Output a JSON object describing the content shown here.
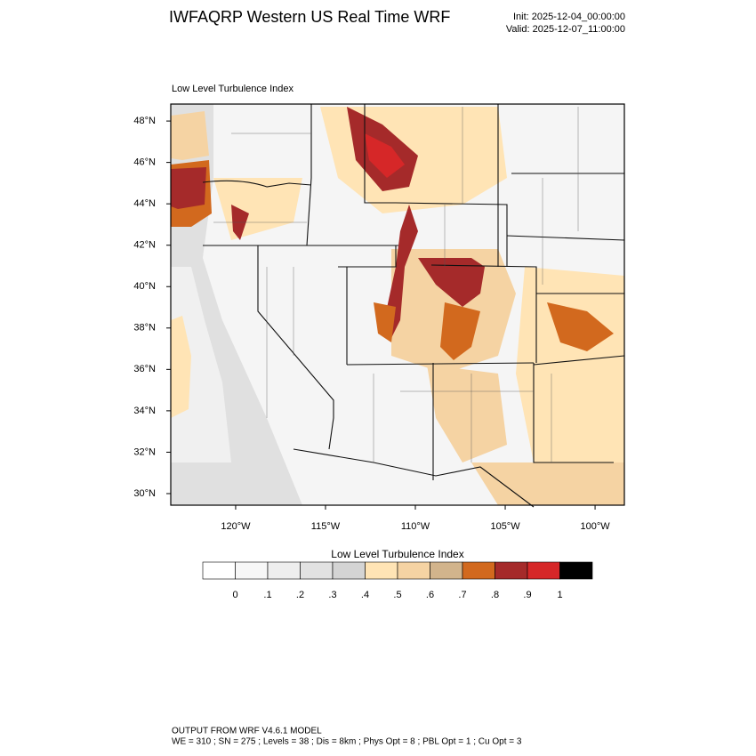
{
  "header": {
    "title": "IWFAQRP Western US Real Time WRF",
    "init": "Init: 2025-12-04_00:00:00",
    "valid": "Valid: 2025-12-07_11:00:00"
  },
  "map": {
    "subtitle": "Low Level Turbulence Index",
    "latlim": [
      29.44,
      48.82
    ],
    "lonlim": [
      -123.61,
      -98.37
    ],
    "lat_ticks": [
      {
        "value": 30,
        "label": "30°N"
      },
      {
        "value": 32,
        "label": "32°N"
      },
      {
        "value": 34,
        "label": "34°N"
      },
      {
        "value": 36,
        "label": "36°N"
      },
      {
        "value": 38,
        "label": "38°N"
      },
      {
        "value": 40,
        "label": "40°N"
      },
      {
        "value": 42,
        "label": "42°N"
      },
      {
        "value": 44,
        "label": "44°N"
      },
      {
        "value": 46,
        "label": "46°N"
      },
      {
        "value": 48,
        "label": "48°N"
      }
    ],
    "lon_ticks": [
      {
        "value": -120,
        "label": "120°W"
      },
      {
        "value": -115,
        "label": "115°W"
      },
      {
        "value": -110,
        "label": "110°W"
      },
      {
        "value": -105,
        "label": "105°W"
      },
      {
        "value": -100,
        "label": "100°W"
      }
    ]
  },
  "colorbar": {
    "title": "Low Level Turbulence Index",
    "colors": [
      "#ffffff",
      "#f7f7f7",
      "#eeeeee",
      "#e2e2e2",
      "#d4d4d4",
      "#ffe4b5",
      "#f5d3a3",
      "#d2b48c",
      "#d2691e",
      "#a52a2a",
      "#d62728",
      "#000000"
    ],
    "ticks": [
      0,
      {
        "value": 0.1,
        "label": ".1"
      },
      {
        "value": 0.2,
        "label": ".2"
      },
      {
        "value": 0.3,
        "label": ".3"
      },
      {
        "value": 0.4,
        "label": ".4"
      },
      {
        "value": 0.5,
        "label": ".5"
      },
      {
        "value": 0.6,
        "label": ".6"
      },
      {
        "value": 0.7,
        "label": ".7"
      },
      {
        "value": 0.8,
        "label": ".8"
      },
      {
        "value": 0.9,
        "label": ".9"
      },
      1
    ]
  },
  "footer": {
    "line1": "OUTPUT FROM WRF V4.6.1 MODEL",
    "line2": "WE = 310 ; SN = 275 ; Levels = 38 ; Dis = 8km ; Phys Opt = 8 ; PBL Opt = 1 ; Cu Opt = 3"
  }
}
